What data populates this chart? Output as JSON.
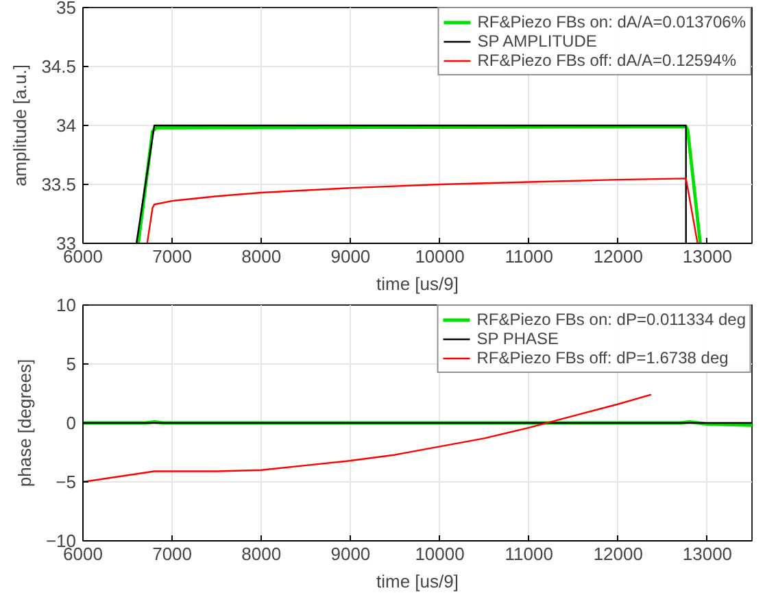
{
  "chart_data": [
    {
      "type": "line",
      "xlabel": "time [us/9]",
      "ylabel": "amplitude [a.u.]",
      "xlim": [
        6000,
        13500
      ],
      "ylim": [
        33,
        35
      ],
      "xticks": [
        6000,
        7000,
        8000,
        9000,
        10000,
        11000,
        12000,
        13000
      ],
      "yticks": [
        33,
        33.5,
        34,
        34.5,
        35
      ],
      "grid": true,
      "legend": "top right",
      "series": [
        {
          "name": "RF&Piezo FBs on: dA/A=0.013706%",
          "color": "#00e000",
          "x": [
            6620,
            6780,
            6820,
            12760,
            12780,
            12920
          ],
          "values": [
            33,
            33.95,
            33.98,
            33.99,
            33.96,
            33
          ]
        },
        {
          "name": "SP AMPLITUDE",
          "color": "#000000",
          "x": [
            6600,
            6800,
            12760,
            12760
          ],
          "values": [
            33,
            34,
            34,
            33
          ]
        },
        {
          "name": "RF&Piezo FBs off: dA/A=0.12594%",
          "color": "#ff0000",
          "x": [
            6720,
            6780,
            6800,
            7000,
            7500,
            8000,
            9000,
            10000,
            11000,
            12000,
            12760,
            12890
          ],
          "values": [
            33,
            33.3,
            33.33,
            33.36,
            33.4,
            33.43,
            33.47,
            33.5,
            33.52,
            33.54,
            33.55,
            33
          ]
        }
      ]
    },
    {
      "type": "line",
      "xlabel": "time [us/9]",
      "ylabel": "phase [degrees]",
      "xlim": [
        6000,
        13500
      ],
      "ylim": [
        -10,
        10
      ],
      "xticks": [
        6000,
        7000,
        8000,
        9000,
        10000,
        11000,
        12000,
        13000
      ],
      "yticks": [
        -10,
        -5,
        0,
        5,
        10
      ],
      "grid": true,
      "legend": "top right",
      "series": [
        {
          "name": "RF&Piezo FBs on: dP=0.011334 deg",
          "color": "#00e000",
          "x": [
            6000,
            6700,
            6800,
            6900,
            12700,
            12800,
            12900,
            13000,
            13500
          ],
          "values": [
            0,
            0,
            0.1,
            0,
            0,
            0.1,
            0,
            -0.1,
            -0.2
          ]
        },
        {
          "name": "SP PHASE",
          "color": "#000000",
          "x": [
            6000,
            13500
          ],
          "values": [
            0,
            0
          ]
        },
        {
          "name": "RF&Piezo FBs off: dP=1.6738 deg",
          "color": "#ff0000",
          "x": [
            6000,
            6800,
            7500,
            8000,
            8500,
            9000,
            9500,
            10000,
            10500,
            11000,
            11500,
            12000,
            12370
          ],
          "values": [
            -5,
            -4.1,
            -4.1,
            -4.0,
            -3.6,
            -3.2,
            -2.7,
            -2.0,
            -1.3,
            -0.4,
            0.6,
            1.6,
            2.4
          ]
        }
      ]
    }
  ]
}
